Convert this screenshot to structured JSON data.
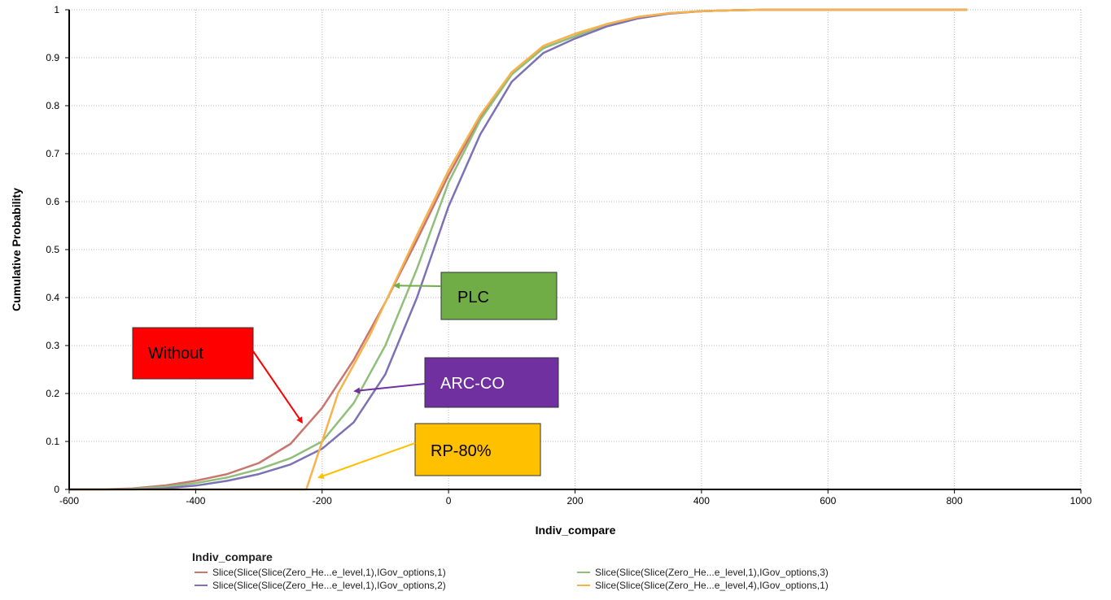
{
  "chart_data": {
    "type": "line",
    "title": "",
    "xlabel": "Indiv_compare",
    "ylabel": "Cumulative Probability",
    "xlim": [
      -600,
      1000
    ],
    "ylim": [
      0,
      1
    ],
    "x_ticks": [
      -600,
      -400,
      -200,
      0,
      200,
      400,
      600,
      800,
      1000
    ],
    "y_ticks": [
      0,
      0.1,
      0.2,
      0.3,
      0.4,
      0.5,
      0.6,
      0.7,
      0.8,
      0.9,
      1
    ],
    "grid": true,
    "legend_title": "Indiv_compare",
    "legend_position": "bottom",
    "series": [
      {
        "name": "Slice(Slice(Slice(Zero_He...e_level,1),IGov_options,1)",
        "color": "#c8766f",
        "points": [
          [
            -600,
            0
          ],
          [
            -550,
            0
          ],
          [
            -500,
            0.002
          ],
          [
            -450,
            0.008
          ],
          [
            -400,
            0.018
          ],
          [
            -350,
            0.032
          ],
          [
            -300,
            0.055
          ],
          [
            -250,
            0.095
          ],
          [
            -200,
            0.17
          ],
          [
            -150,
            0.27
          ],
          [
            -100,
            0.39
          ],
          [
            -50,
            0.52
          ],
          [
            0,
            0.655
          ],
          [
            50,
            0.775
          ],
          [
            100,
            0.87
          ],
          [
            150,
            0.92
          ],
          [
            200,
            0.945
          ],
          [
            250,
            0.97
          ],
          [
            300,
            0.985
          ],
          [
            350,
            0.993
          ],
          [
            400,
            0.997
          ],
          [
            450,
            0.999
          ],
          [
            500,
            1
          ],
          [
            600,
            1
          ],
          [
            700,
            1
          ],
          [
            820,
            1
          ]
        ]
      },
      {
        "name": "Slice(Slice(Slice(Zero_He...e_level,1),IGov_options,3)",
        "color": "#8fbf7a",
        "points": [
          [
            -600,
            0
          ],
          [
            -550,
            0
          ],
          [
            -500,
            0.001
          ],
          [
            -450,
            0.005
          ],
          [
            -400,
            0.013
          ],
          [
            -350,
            0.025
          ],
          [
            -300,
            0.042
          ],
          [
            -250,
            0.065
          ],
          [
            -200,
            0.1
          ],
          [
            -150,
            0.18
          ],
          [
            -100,
            0.3
          ],
          [
            -50,
            0.46
          ],
          [
            0,
            0.64
          ],
          [
            50,
            0.77
          ],
          [
            100,
            0.865
          ],
          [
            150,
            0.92
          ],
          [
            200,
            0.945
          ],
          [
            250,
            0.97
          ],
          [
            300,
            0.985
          ],
          [
            350,
            0.993
          ],
          [
            400,
            0.997
          ],
          [
            450,
            0.999
          ],
          [
            500,
            1
          ],
          [
            600,
            1
          ],
          [
            700,
            1
          ],
          [
            820,
            1
          ]
        ]
      },
      {
        "name": "Slice(Slice(Slice(Zero_He...e_level,1),IGov_options,2)",
        "color": "#7b72b5",
        "points": [
          [
            -600,
            0
          ],
          [
            -550,
            0
          ],
          [
            -500,
            0
          ],
          [
            -450,
            0.002
          ],
          [
            -400,
            0.008
          ],
          [
            -350,
            0.018
          ],
          [
            -300,
            0.032
          ],
          [
            -250,
            0.052
          ],
          [
            -200,
            0.085
          ],
          [
            -150,
            0.14
          ],
          [
            -100,
            0.24
          ],
          [
            -50,
            0.4
          ],
          [
            0,
            0.59
          ],
          [
            50,
            0.74
          ],
          [
            100,
            0.85
          ],
          [
            150,
            0.91
          ],
          [
            200,
            0.94
          ],
          [
            250,
            0.965
          ],
          [
            300,
            0.982
          ],
          [
            350,
            0.992
          ],
          [
            400,
            0.997
          ],
          [
            450,
            0.999
          ],
          [
            500,
            1
          ],
          [
            600,
            1
          ],
          [
            700,
            1
          ],
          [
            820,
            1
          ]
        ]
      },
      {
        "name": "Slice(Slice(Slice(Zero_He...e_level,4),IGov_options,1)",
        "color": "#f7b24c",
        "points": [
          [
            -600,
            0
          ],
          [
            -500,
            0
          ],
          [
            -400,
            0
          ],
          [
            -300,
            0
          ],
          [
            -240,
            0
          ],
          [
            -225,
            0
          ],
          [
            -215,
            0.04
          ],
          [
            -200,
            0.1
          ],
          [
            -175,
            0.2
          ],
          [
            -150,
            0.26
          ],
          [
            -125,
            0.32
          ],
          [
            -100,
            0.39
          ],
          [
            -50,
            0.53
          ],
          [
            0,
            0.665
          ],
          [
            50,
            0.78
          ],
          [
            100,
            0.87
          ],
          [
            150,
            0.925
          ],
          [
            200,
            0.95
          ],
          [
            250,
            0.97
          ],
          [
            300,
            0.985
          ],
          [
            350,
            0.993
          ],
          [
            400,
            0.997
          ],
          [
            450,
            0.999
          ],
          [
            500,
            1
          ],
          [
            600,
            1
          ],
          [
            700,
            1
          ],
          [
            820,
            1
          ]
        ]
      }
    ],
    "annotations": [
      {
        "text": "PLC",
        "fill": "#70ad47",
        "text_color": "#000000",
        "arrow_color": "#70ad47",
        "target": [
          -85,
          0.425
        ]
      },
      {
        "text": "Without",
        "fill": "#ff0000",
        "text_color": "#000000",
        "arrow_color": "#ff0000",
        "target": [
          -232,
          0.14
        ]
      },
      {
        "text": "ARC-CO",
        "fill": "#7030a0",
        "text_color": "#ffffff",
        "arrow_color": "#7030a0",
        "target": [
          -148,
          0.205
        ]
      },
      {
        "text": "RP-80%",
        "fill": "#ffc000",
        "text_color": "#000000",
        "arrow_color": "#ffc000",
        "target": [
          -205,
          0.025
        ]
      }
    ]
  }
}
